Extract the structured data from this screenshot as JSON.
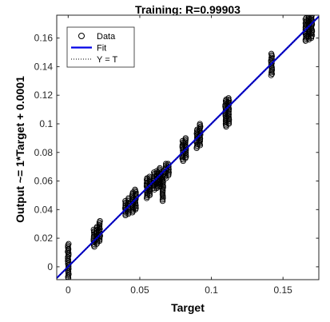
{
  "chart_data": {
    "type": "scatter",
    "title": "Training: R=0.99903",
    "xlabel": "Target",
    "ylabel": "Output ~= 1*Target + 0.0001",
    "xlim": [
      -0.008,
      0.175
    ],
    "ylim": [
      -0.009,
      0.176
    ],
    "xticks": [
      0,
      0.05,
      0.1,
      0.15
    ],
    "xtick_labels": [
      "0",
      "0.05",
      "0.1",
      "0.15"
    ],
    "yticks": [
      0,
      0.02,
      0.04,
      0.06,
      0.08,
      0.1,
      0.12,
      0.14,
      0.16
    ],
    "ytick_labels": [
      "0",
      "0.02",
      "0.04",
      "0.06",
      "0.08",
      "0.1",
      "0.12",
      "0.14",
      "0.16"
    ],
    "grid": false,
    "legend": {
      "position": "top-left",
      "entries": [
        {
          "label": "Data",
          "marker": "circle-open",
          "color": "#000000"
        },
        {
          "label": "Fit",
          "line": "solid",
          "color": "#0000e6"
        },
        {
          "label": "Y = T",
          "line": "dotted",
          "color": "#000000"
        }
      ]
    },
    "fit": {
      "slope": 1,
      "intercept": 0.0001,
      "color": "#0000e6"
    },
    "identity": {
      "slope": 1,
      "intercept": 0,
      "color": "#000000"
    },
    "clusters": [
      {
        "target": 0.0,
        "ymin": -0.008,
        "ymax": 0.016
      },
      {
        "target": 0.018,
        "ymin": 0.014,
        "ymax": 0.026
      },
      {
        "target": 0.02,
        "ymin": 0.016,
        "ymax": 0.028
      },
      {
        "target": 0.022,
        "ymin": 0.018,
        "ymax": 0.032
      },
      {
        "target": 0.04,
        "ymin": 0.036,
        "ymax": 0.046
      },
      {
        "target": 0.042,
        "ymin": 0.037,
        "ymax": 0.048
      },
      {
        "target": 0.045,
        "ymin": 0.038,
        "ymax": 0.052
      },
      {
        "target": 0.047,
        "ymin": 0.04,
        "ymax": 0.054
      },
      {
        "target": 0.055,
        "ymin": 0.048,
        "ymax": 0.062
      },
      {
        "target": 0.057,
        "ymin": 0.05,
        "ymax": 0.063
      },
      {
        "target": 0.06,
        "ymin": 0.054,
        "ymax": 0.066
      },
      {
        "target": 0.062,
        "ymin": 0.055,
        "ymax": 0.067
      },
      {
        "target": 0.064,
        "ymin": 0.056,
        "ymax": 0.069
      },
      {
        "target": 0.066,
        "ymin": 0.046,
        "ymax": 0.064
      },
      {
        "target": 0.068,
        "ymin": 0.062,
        "ymax": 0.072
      },
      {
        "target": 0.07,
        "ymin": 0.064,
        "ymax": 0.072
      },
      {
        "target": 0.08,
        "ymin": 0.074,
        "ymax": 0.088
      },
      {
        "target": 0.082,
        "ymin": 0.076,
        "ymax": 0.09
      },
      {
        "target": 0.09,
        "ymin": 0.083,
        "ymax": 0.096
      },
      {
        "target": 0.092,
        "ymin": 0.085,
        "ymax": 0.1
      },
      {
        "target": 0.11,
        "ymin": 0.098,
        "ymax": 0.117
      },
      {
        "target": 0.112,
        "ymin": 0.1,
        "ymax": 0.118
      },
      {
        "target": 0.142,
        "ymin": 0.134,
        "ymax": 0.149
      },
      {
        "target": 0.166,
        "ymin": 0.158,
        "ymax": 0.174
      },
      {
        "target": 0.168,
        "ymin": 0.159,
        "ymax": 0.175
      },
      {
        "target": 0.17,
        "ymin": 0.16,
        "ymax": 0.176
      }
    ]
  }
}
